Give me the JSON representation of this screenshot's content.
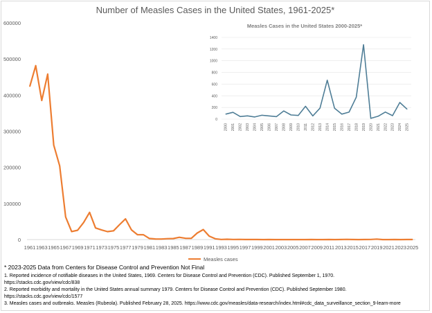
{
  "chart_data": [
    {
      "type": "line",
      "title": "Number of Measles Cases in the United States, 1961-2025*",
      "xlabel": "",
      "ylabel": "",
      "ylim": [
        0,
        600000
      ],
      "yticks": [
        "0",
        "100000",
        "200000",
        "300000",
        "400000",
        "500000",
        "600000"
      ],
      "xticks": [
        "1961",
        "1963",
        "1965",
        "1967",
        "1969",
        "1971",
        "1973",
        "1975",
        "1977",
        "1979",
        "1981",
        "1983",
        "1985",
        "1987",
        "1989",
        "1991",
        "1993",
        "1995",
        "1997",
        "1999",
        "2001",
        "2003",
        "2005",
        "2007",
        "2009",
        "2011",
        "2013",
        "2015",
        "2017",
        "2019",
        "2021",
        "2023",
        "2025"
      ],
      "grid": false,
      "legend": "bottom",
      "color": "#ed7d31",
      "series": [
        {
          "name": "Measles cases",
          "x": [
            1961,
            1962,
            1963,
            1964,
            1965,
            1966,
            1967,
            1968,
            1969,
            1970,
            1971,
            1972,
            1973,
            1974,
            1975,
            1976,
            1977,
            1978,
            1979,
            1980,
            1981,
            1982,
            1983,
            1984,
            1985,
            1986,
            1987,
            1988,
            1989,
            1990,
            1991,
            1992,
            1993,
            1994,
            1995,
            1996,
            1997,
            1998,
            1999,
            2000,
            2001,
            2002,
            2003,
            2004,
            2005,
            2006,
            2007,
            2008,
            2009,
            2010,
            2011,
            2012,
            2013,
            2014,
            2015,
            2016,
            2017,
            2018,
            2019,
            2020,
            2021,
            2022,
            2023,
            2024,
            2025
          ],
          "values": [
            423919,
            481530,
            385156,
            458083,
            261904,
            204136,
            62705,
            22231,
            25826,
            47351,
            75290,
            32275,
            26690,
            22094,
            24374,
            41126,
            57345,
            26871,
            13597,
            13506,
            3124,
            1714,
            1497,
            2587,
            2822,
            6282,
            3655,
            3396,
            18193,
            27786,
            9643,
            2237,
            312,
            963,
            309,
            508,
            138,
            100,
            100,
            86,
            116,
            44,
            56,
            37,
            66,
            55,
            43,
            140,
            71,
            63,
            220,
            55,
            187,
            667,
            188,
            86,
            120,
            375,
            1274,
            13,
            49,
            121,
            59,
            285,
            170
          ]
        }
      ]
    },
    {
      "type": "line",
      "title": "Measles Cases in the United States 2000-2025*",
      "ylim": [
        0,
        1400
      ],
      "yticks": [
        "0",
        "200",
        "400",
        "600",
        "800",
        "1000",
        "1200",
        "1400"
      ],
      "grid": true,
      "color": "#4e7d96",
      "categories": [
        "2000",
        "2001",
        "2002",
        "2003",
        "2004",
        "2005",
        "2006",
        "2007",
        "2008",
        "2009",
        "2010",
        "2011",
        "2012",
        "2013",
        "2014",
        "2015",
        "2016",
        "2017",
        "2018",
        "2019",
        "2020",
        "2021",
        "2022",
        "2023",
        "2024",
        "2025"
      ],
      "values": [
        86,
        116,
        44,
        56,
        37,
        66,
        55,
        43,
        140,
        71,
        63,
        220,
        55,
        187,
        667,
        188,
        86,
        120,
        375,
        1274,
        13,
        49,
        121,
        59,
        285,
        170
      ]
    }
  ],
  "footnotes": [
    "* 2023-2025 Data from Centers for Disease Control and Prevention Not Final",
    "1. Reported incidence of notifiable diseases in the United States, 1969. Centers for Disease Control and Prevention (CDC). Published September 1, 1970.",
    "https://stacks.cdc.gov/view/cdc/838",
    "2. Reported morbidity and mortality in the United States annual summary 1979. Centers for Disease Control and Prevention (CDC). Published September 1980.",
    "https://stacks.cdc.gov/view/cdc/1577",
    "3. Measles cases and outbreaks. Measles (Rubeola). Published February 28, 2025. https://www.cdc.gov/measles/data-research/index.html#cdc_data_surveillance_section_9-learn-more"
  ]
}
